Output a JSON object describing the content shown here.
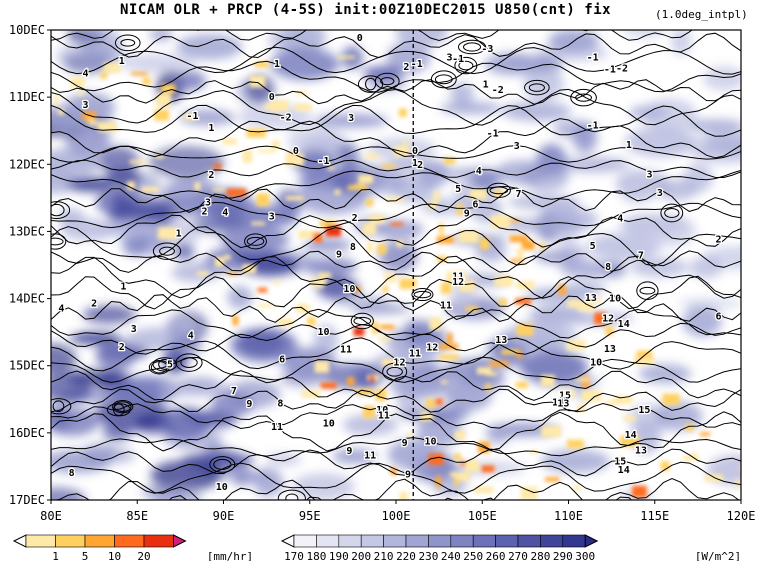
{
  "header": {
    "title": "NICAM  OLR + PRCP (4-5S) init:00Z10DEC2015 U850(cnt) fix",
    "note": "(1.0deg_intpl)"
  },
  "chart_data": {
    "type": "heatmap",
    "title": "NICAM  OLR + PRCP (4-5S) init:00Z10DEC2015 U850(cnt) fix",
    "x_axis": {
      "ticks": [
        "80E",
        "85E",
        "90E",
        "95E",
        "100E",
        "105E",
        "110E",
        "115E",
        "120E"
      ],
      "range": [
        80,
        120
      ]
    },
    "y_axis": {
      "ticks": [
        "10DEC",
        "11DEC",
        "12DEC",
        "13DEC",
        "14DEC",
        "15DEC",
        "16DEC",
        "17DEC"
      ],
      "range": [
        "10DEC",
        "17DEC"
      ]
    },
    "marker_line": {
      "x": 101,
      "style": "dashed"
    },
    "prcp_colorbar": {
      "unit": "[mm/hr]",
      "labels": [
        "1",
        "5",
        "10",
        "20"
      ],
      "colors": [
        "#ffffff",
        "#ffe9a8",
        "#ffd060",
        "#ffa632",
        "#ff6a1f",
        "#e83010",
        "#d0207a"
      ]
    },
    "olr_colorbar": {
      "unit": "[W/m^2]",
      "labels": [
        "170",
        "180",
        "190",
        "200",
        "210",
        "220",
        "230",
        "240",
        "250",
        "260",
        "270",
        "280",
        "290",
        "300"
      ],
      "colors": [
        "#ffffff",
        "#f2f2f8",
        "#e4e5f2",
        "#d4d6ec",
        "#c4c7e5",
        "#b2b6dc",
        "#a1a5d3",
        "#8f94ca",
        "#7e83c1",
        "#6d72b8",
        "#5d62ae",
        "#4e53a4",
        "#40459a",
        "#33388f",
        "#272c84"
      ]
    },
    "contour_labels": [
      {
        "t": "0",
        "x": 97.9,
        "y": 10.12
      },
      {
        "t": "1",
        "x": 84.1,
        "y": 10.46
      },
      {
        "t": "4",
        "x": 82.0,
        "y": 10.65
      },
      {
        "t": "1",
        "x": 93.1,
        "y": 10.51
      },
      {
        "t": "-1",
        "x": 101.2,
        "y": 10.51
      },
      {
        "t": "2",
        "x": 100.6,
        "y": 10.55
      },
      {
        "t": "-1",
        "x": 103.6,
        "y": 10.43
      },
      {
        "t": "3",
        "x": 103.1,
        "y": 10.41
      },
      {
        "t": "-3",
        "x": 105.3,
        "y": 10.28
      },
      {
        "t": "-1",
        "x": 111.4,
        "y": 10.41
      },
      {
        "t": "-2",
        "x": 113.1,
        "y": 10.57
      },
      {
        "t": "-1",
        "x": 112.4,
        "y": 10.59
      },
      {
        "t": "0",
        "x": 92.8,
        "y": 11.0
      },
      {
        "t": "3",
        "x": 82.0,
        "y": 11.12
      },
      {
        "t": "-2",
        "x": 93.6,
        "y": 11.3
      },
      {
        "t": "3",
        "x": 97.4,
        "y": 11.31
      },
      {
        "t": "1",
        "x": 105.2,
        "y": 10.81
      },
      {
        "t": "-2",
        "x": 105.9,
        "y": 10.89
      },
      {
        "t": "-1",
        "x": 88.2,
        "y": 11.28
      },
      {
        "t": "1",
        "x": 89.3,
        "y": 11.46
      },
      {
        "t": "-1",
        "x": 105.6,
        "y": 11.54
      },
      {
        "t": "-1",
        "x": 111.4,
        "y": 11.42
      },
      {
        "t": "0",
        "x": 94.2,
        "y": 11.8
      },
      {
        "t": "-1",
        "x": 95.8,
        "y": 11.95
      },
      {
        "t": "0",
        "x": 101.1,
        "y": 11.8
      },
      {
        "t": "3",
        "x": 107.0,
        "y": 11.73
      },
      {
        "t": "1",
        "x": 113.5,
        "y": 11.71
      },
      {
        "t": "2",
        "x": 89.3,
        "y": 12.16
      },
      {
        "t": "1",
        "x": 101.1,
        "y": 11.98
      },
      {
        "t": "2",
        "x": 101.4,
        "y": 12.01
      },
      {
        "t": "4",
        "x": 104.8,
        "y": 12.1
      },
      {
        "t": "3",
        "x": 114.7,
        "y": 12.15
      },
      {
        "t": "3",
        "x": 89.1,
        "y": 12.57
      },
      {
        "t": "2",
        "x": 88.9,
        "y": 12.7
      },
      {
        "t": "4",
        "x": 90.1,
        "y": 12.72
      },
      {
        "t": "3",
        "x": 92.8,
        "y": 12.78
      },
      {
        "t": "5",
        "x": 103.6,
        "y": 12.37
      },
      {
        "t": "7",
        "x": 107.1,
        "y": 12.44
      },
      {
        "t": "6",
        "x": 104.6,
        "y": 12.6
      },
      {
        "t": "9",
        "x": 104.1,
        "y": 12.73
      },
      {
        "t": "3",
        "x": 115.3,
        "y": 12.43
      },
      {
        "t": "2",
        "x": 97.6,
        "y": 12.8
      },
      {
        "t": "4",
        "x": 113.0,
        "y": 12.81
      },
      {
        "t": "1",
        "x": 87.4,
        "y": 13.03
      },
      {
        "t": "2",
        "x": 118.7,
        "y": 13.12
      },
      {
        "t": "5",
        "x": 111.4,
        "y": 13.22
      },
      {
        "t": "7",
        "x": 114.2,
        "y": 13.36
      },
      {
        "t": "9",
        "x": 96.7,
        "y": 13.34
      },
      {
        "t": "8",
        "x": 97.5,
        "y": 13.23
      },
      {
        "t": "11",
        "x": 103.6,
        "y": 13.67
      },
      {
        "t": "12",
        "x": 103.6,
        "y": 13.75
      },
      {
        "t": "8",
        "x": 112.3,
        "y": 13.53
      },
      {
        "t": "1",
        "x": 84.2,
        "y": 13.82
      },
      {
        "t": "10",
        "x": 97.3,
        "y": 13.86
      },
      {
        "t": "2",
        "x": 82.5,
        "y": 14.07
      },
      {
        "t": "4",
        "x": 80.6,
        "y": 14.15
      },
      {
        "t": "11",
        "x": 102.9,
        "y": 14.1
      },
      {
        "t": "13",
        "x": 111.3,
        "y": 13.99
      },
      {
        "t": "10",
        "x": 112.7,
        "y": 14.0
      },
      {
        "t": "12",
        "x": 112.3,
        "y": 14.3
      },
      {
        "t": "14",
        "x": 113.2,
        "y": 14.38
      },
      {
        "t": "6",
        "x": 118.7,
        "y": 14.27
      },
      {
        "t": "3",
        "x": 84.8,
        "y": 14.45
      },
      {
        "t": "4",
        "x": 88.1,
        "y": 14.55
      },
      {
        "t": "10",
        "x": 95.8,
        "y": 14.5
      },
      {
        "t": "13",
        "x": 106.1,
        "y": 14.62
      },
      {
        "t": "2",
        "x": 84.1,
        "y": 14.72
      },
      {
        "t": "11",
        "x": 97.1,
        "y": 14.76
      },
      {
        "t": "12",
        "x": 102.1,
        "y": 14.73
      },
      {
        "t": "11",
        "x": 101.1,
        "y": 14.82
      },
      {
        "t": "13",
        "x": 112.4,
        "y": 14.75
      },
      {
        "t": "5",
        "x": 86.9,
        "y": 14.98
      },
      {
        "t": "6",
        "x": 93.4,
        "y": 14.91
      },
      {
        "t": "12",
        "x": 100.2,
        "y": 14.95
      },
      {
        "t": "10",
        "x": 111.6,
        "y": 14.95
      },
      {
        "t": "7",
        "x": 90.6,
        "y": 15.38
      },
      {
        "t": "15",
        "x": 109.8,
        "y": 15.44
      },
      {
        "t": "14",
        "x": 109.4,
        "y": 15.55
      },
      {
        "t": "13",
        "x": 109.7,
        "y": 15.56
      },
      {
        "t": "9",
        "x": 91.5,
        "y": 15.57
      },
      {
        "t": "8",
        "x": 93.3,
        "y": 15.56
      },
      {
        "t": "10",
        "x": 99.2,
        "y": 15.66
      },
      {
        "t": "11",
        "x": 99.3,
        "y": 15.74
      },
      {
        "t": "15",
        "x": 114.4,
        "y": 15.66
      },
      {
        "t": "11",
        "x": 93.1,
        "y": 15.91
      },
      {
        "t": "10",
        "x": 96.1,
        "y": 15.86
      },
      {
        "t": "14",
        "x": 113.6,
        "y": 16.03
      },
      {
        "t": "9",
        "x": 100.5,
        "y": 16.15
      },
      {
        "t": "10",
        "x": 102.0,
        "y": 16.13
      },
      {
        "t": "9",
        "x": 97.3,
        "y": 16.27
      },
      {
        "t": "11",
        "x": 98.5,
        "y": 16.34
      },
      {
        "t": "13",
        "x": 114.2,
        "y": 16.26
      },
      {
        "t": "15",
        "x": 113.0,
        "y": 16.43
      },
      {
        "t": "14",
        "x": 113.2,
        "y": 16.55
      },
      {
        "t": "8",
        "x": 81.2,
        "y": 16.6
      },
      {
        "t": "9",
        "x": 100.7,
        "y": 16.62
      },
      {
        "t": "10",
        "x": 89.9,
        "y": 16.81
      }
    ],
    "grid": false,
    "legend_placement": "bottom"
  }
}
